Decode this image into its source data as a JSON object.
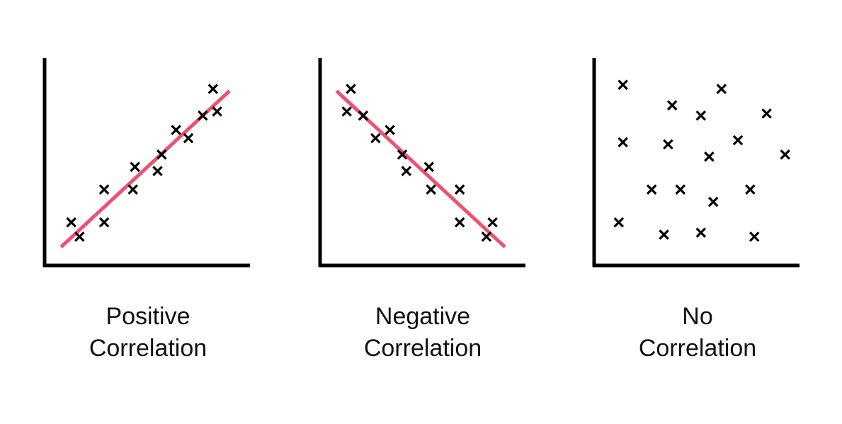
{
  "colors": {
    "axis": "#000000",
    "marker": "#000000",
    "trend": "#f0506e",
    "text": "#111111",
    "background": "#ffffff"
  },
  "chart_data": [
    {
      "type": "scatter",
      "title": "Positive Correlation",
      "title_lines": [
        "Positive",
        "Correlation"
      ],
      "xlabel": "",
      "ylabel": "",
      "grid": false,
      "marker": "x",
      "trendline": {
        "from": [
          0.08,
          0.09
        ],
        "to": [
          0.9,
          0.85
        ]
      },
      "points": [
        [
          0.13,
          0.21
        ],
        [
          0.17,
          0.14
        ],
        [
          0.29,
          0.37
        ],
        [
          0.29,
          0.21
        ],
        [
          0.43,
          0.37
        ],
        [
          0.44,
          0.48
        ],
        [
          0.55,
          0.46
        ],
        [
          0.57,
          0.54
        ],
        [
          0.64,
          0.66
        ],
        [
          0.7,
          0.62
        ],
        [
          0.77,
          0.73
        ],
        [
          0.82,
          0.86
        ],
        [
          0.84,
          0.75
        ]
      ]
    },
    {
      "type": "scatter",
      "title": "Negative Correlation",
      "title_lines": [
        "Negative",
        "Correlation"
      ],
      "xlabel": "",
      "ylabel": "",
      "grid": false,
      "marker": "x",
      "trendline": {
        "from": [
          0.08,
          0.85
        ],
        "to": [
          0.9,
          0.09
        ]
      },
      "points": [
        [
          0.15,
          0.86
        ],
        [
          0.13,
          0.75
        ],
        [
          0.21,
          0.73
        ],
        [
          0.27,
          0.62
        ],
        [
          0.34,
          0.66
        ],
        [
          0.4,
          0.54
        ],
        [
          0.42,
          0.46
        ],
        [
          0.53,
          0.48
        ],
        [
          0.54,
          0.37
        ],
        [
          0.68,
          0.37
        ],
        [
          0.68,
          0.21
        ],
        [
          0.81,
          0.14
        ],
        [
          0.84,
          0.21
        ]
      ]
    },
    {
      "type": "scatter",
      "title": "No Correlation",
      "title_lines": [
        "No",
        "Correlation"
      ],
      "xlabel": "",
      "ylabel": "",
      "grid": false,
      "marker": "x",
      "trendline": null,
      "points": [
        [
          0.14,
          0.88
        ],
        [
          0.62,
          0.86
        ],
        [
          0.38,
          0.78
        ],
        [
          0.52,
          0.73
        ],
        [
          0.84,
          0.74
        ],
        [
          0.14,
          0.6
        ],
        [
          0.36,
          0.59
        ],
        [
          0.7,
          0.61
        ],
        [
          0.56,
          0.53
        ],
        [
          0.93,
          0.54
        ],
        [
          0.28,
          0.37
        ],
        [
          0.42,
          0.37
        ],
        [
          0.76,
          0.37
        ],
        [
          0.58,
          0.31
        ],
        [
          0.12,
          0.21
        ],
        [
          0.34,
          0.15
        ],
        [
          0.52,
          0.16
        ],
        [
          0.78,
          0.14
        ]
      ]
    }
  ]
}
